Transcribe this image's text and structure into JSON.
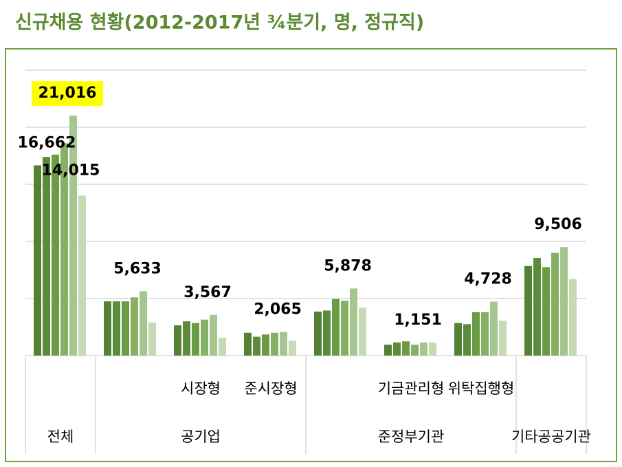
{
  "chart_data": {
    "type": "bar",
    "title": "신규채용 현황(2012-2017년 ¾분기, 명, 정규직)",
    "categories": [
      null,
      null,
      "시장형",
      "준시장형",
      null,
      "기금관리형",
      "위탁집행형",
      null
    ],
    "category_groups": [
      {
        "label": "전체",
        "span": [
          0,
          0
        ]
      },
      {
        "label": "공기업",
        "span": [
          1,
          3
        ]
      },
      {
        "label": "준정부기관",
        "span": [
          4,
          6
        ]
      },
      {
        "label": "기타공공기관",
        "span": [
          7,
          7
        ]
      }
    ],
    "series": [
      {
        "color": "#548235",
        "values": [
          16662,
          4750,
          2650,
          2000,
          3850,
          950,
          2850,
          7850
        ],
        "value_labels": [
          "16,662",
          null,
          null,
          null,
          null,
          null,
          null,
          null
        ]
      },
      {
        "color": "#5b8c3b",
        "values": [
          17400,
          4750,
          3000,
          1650,
          3950,
          1150,
          2750,
          8550
        ]
      },
      {
        "color": "#6a9c45",
        "values": [
          17600,
          4750,
          2850,
          1850,
          4950,
          1250,
          3800,
          7750
        ]
      },
      {
        "color": "#86b064",
        "values": [
          18600,
          5100,
          3150,
          2000,
          4800,
          950,
          3800,
          9000
        ]
      },
      {
        "color": "#a6c68f",
        "values": [
          21016,
          5633,
          3567,
          2065,
          5878,
          1151,
          4728,
          9506
        ],
        "value_labels": [
          "21,016",
          "5,633",
          "3,567",
          "2,065",
          "5,878",
          "1,151",
          "4,728",
          "9,506"
        ],
        "highlight": [
          0
        ]
      },
      {
        "color": "#c5dab5",
        "values": [
          14015,
          2900,
          1550,
          1300,
          4200,
          1150,
          3050,
          6700
        ],
        "value_labels": [
          "14,015",
          null,
          null,
          null,
          null,
          null,
          null,
          null
        ]
      }
    ],
    "ylim": [
      0,
      25000
    ],
    "yticks": [
      0,
      5000,
      10000,
      15000,
      20000,
      25000
    ],
    "grid": true,
    "highlight_color": "#ffff00"
  }
}
